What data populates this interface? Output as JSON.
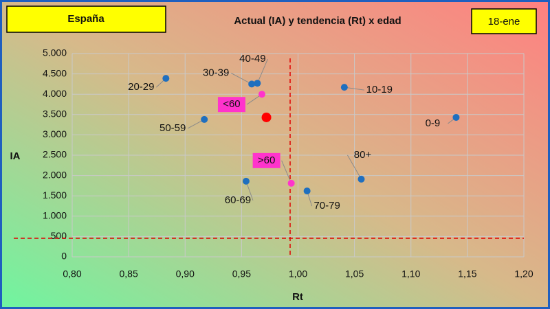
{
  "chart_data": {
    "type": "scatter",
    "title": "Actual (IA) y tendencia (Rt) x edad",
    "region": "España",
    "date": "18-ene",
    "x_label": "Rt",
    "y_label": "IA",
    "labels": [
      "20-29",
      "30-39",
      "40-49",
      "10-19",
      "0-9",
      "<60",
      null,
      "50-59",
      ">60",
      "80+",
      "60-69",
      "70-79"
    ],
    "x": [
      0.883,
      0.959,
      0.964,
      1.041,
      1.14,
      0.968,
      0.972,
      0.917,
      0.994,
      1.056,
      0.954,
      1.008
    ],
    "values": [
      4390,
      4250,
      4270,
      4170,
      3430,
      4000,
      3430,
      3380,
      1810,
      1910,
      1860,
      1620
    ],
    "colors": [
      "#1f6fbf",
      "#1f6fbf",
      "#1f6fbf",
      "#1f6fbf",
      "#1f6fbf",
      "#ff33cc",
      "#ff0000",
      "#1f6fbf",
      "#ff33cc",
      "#1f6fbf",
      "#1f6fbf",
      "#1f6fbf"
    ],
    "vline": 0.993,
    "hline": 456,
    "xlim": [
      0.8,
      1.2
    ],
    "xticks": [
      {
        "value": 0.8,
        "label": "0,80"
      },
      {
        "value": 0.85,
        "label": "0,85"
      },
      {
        "value": 0.9,
        "label": "0,90"
      },
      {
        "value": 0.95,
        "label": "0,95"
      },
      {
        "value": 1.0,
        "label": "1,00"
      },
      {
        "value": 1.05,
        "label": "1,05"
      },
      {
        "value": 1.1,
        "label": "1,10"
      },
      {
        "value": 1.15,
        "label": "1,15"
      },
      {
        "value": 1.2,
        "label": "1,20"
      }
    ],
    "ylim": [
      0,
      5000
    ],
    "yticks": [
      0,
      500,
      {
        "value": 1000,
        "label": "1.000"
      },
      {
        "value": 1500,
        "label": "1.500"
      },
      {
        "value": 2000,
        "label": "2.000"
      },
      {
        "value": 2500,
        "label": "2.500"
      },
      {
        "value": 3000,
        "label": "3.000"
      },
      {
        "value": 3500,
        "label": "3.500"
      },
      {
        "value": 4000,
        "label": "4.000"
      },
      {
        "value": 4500,
        "label": "4.500"
      },
      {
        "value": 5000,
        "label": "5.000"
      }
    ],
    "grid": true
  }
}
